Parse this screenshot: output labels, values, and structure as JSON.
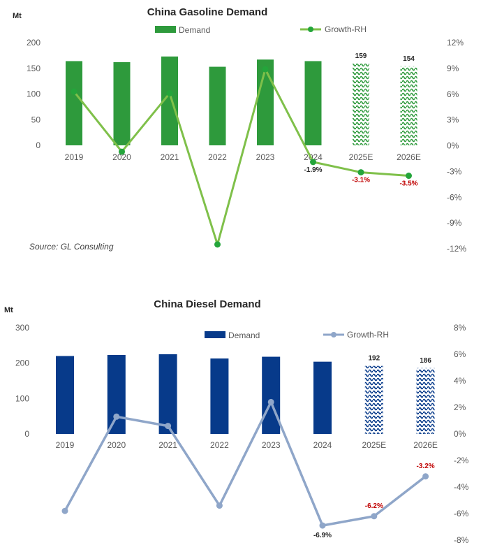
{
  "chart_data": [
    {
      "type": "bar",
      "title": "China Gasoline Demand",
      "ylabel": "Mt",
      "ylim": [
        0,
        200
      ],
      "yticks": [
        "0",
        "50",
        "100",
        "150",
        "200"
      ],
      "y2lim": [
        -12,
        12
      ],
      "y2ticks": [
        "-12%",
        "-9%",
        "-6%",
        "-3%",
        "0%",
        "3%",
        "6%",
        "9%",
        "12%"
      ],
      "categories": [
        "2019",
        "2020",
        "2021",
        "2022",
        "2023",
        "2024",
        "2025E",
        "2026E"
      ],
      "source": "Source: GL Consulting",
      "legend_position": "top",
      "series": [
        {
          "name": "Demand",
          "kind": "bar",
          "axis": "left",
          "values": [
            164,
            162,
            173,
            153,
            167,
            164,
            159,
            154
          ],
          "forecast_from_index": 6
        },
        {
          "name": "Growth-RH",
          "kind": "line",
          "axis": "right",
          "values": [
            6.3,
            -0.7,
            6.1,
            -11.5,
            8.9,
            -1.9,
            -3.1,
            -3.5
          ]
        }
      ],
      "bar_labels": [
        {
          "index": 6,
          "text": "159"
        },
        {
          "index": 7,
          "text": "154"
        }
      ],
      "line_labels": [
        {
          "index": 5,
          "text": "-1.9%"
        },
        {
          "index": 6,
          "text": "-3.1%"
        },
        {
          "index": 7,
          "text": "-3.5%"
        }
      ],
      "colors": {
        "bar": "#2e9a3c",
        "line": "#7fc04a",
        "marker": "#24a53b",
        "label_dark": "#262626",
        "label_red": "#c00000"
      }
    },
    {
      "type": "bar",
      "title": "China Diesel Demand",
      "ylabel": "Mt",
      "ylim": [
        0,
        300
      ],
      "yticks": [
        "0",
        "100",
        "200",
        "300"
      ],
      "y2lim": [
        -8,
        8
      ],
      "y2ticks": [
        "-8%",
        "-6%",
        "-4%",
        "-2%",
        "0%",
        "2%",
        "4%",
        "6%",
        "8%"
      ],
      "categories": [
        "2019",
        "2020",
        "2021",
        "2022",
        "2023",
        "2024",
        "2025E",
        "2026E"
      ],
      "legend_position": "top",
      "series": [
        {
          "name": "Demand",
          "kind": "bar",
          "axis": "left",
          "values": [
            220,
            223,
            225,
            213,
            218,
            204,
            192,
            186
          ],
          "forecast_from_index": 6
        },
        {
          "name": "Growth-RH",
          "kind": "line",
          "axis": "right",
          "values": [
            -5.8,
            1.3,
            0.6,
            -5.4,
            2.4,
            -6.9,
            -6.2,
            -3.2
          ]
        }
      ],
      "bar_labels": [
        {
          "index": 6,
          "text": "192"
        },
        {
          "index": 7,
          "text": "186"
        }
      ],
      "line_labels": [
        {
          "index": 5,
          "text": "-6.9%"
        },
        {
          "index": 6,
          "text": "-6.2%"
        },
        {
          "index": 7,
          "text": "-3.2%"
        }
      ],
      "colors": {
        "bar": "#073a8a",
        "line": "#8fa6c9",
        "marker": "#8fa6c9",
        "label_dark": "#262626",
        "label_red": "#c00000"
      }
    }
  ]
}
